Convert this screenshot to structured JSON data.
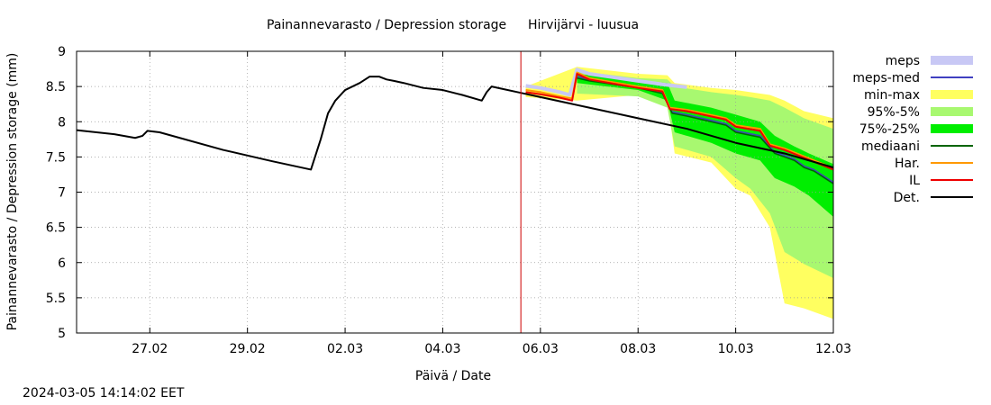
{
  "chart_data": {
    "type": "area",
    "title": "Painannevarasto / Depression storage",
    "station": "Hirvijärvi - luusua",
    "xlabel": "Päivä / Date",
    "ylabel": "Painannevarasto / Depression storage (mm)",
    "x_unit": "days since 2024-02-26 00:00",
    "xlim": [
      -0.5,
      15
    ],
    "ylim": [
      5,
      9
    ],
    "yticks": [
      5,
      5.5,
      6,
      6.5,
      7,
      7.5,
      8,
      8.5,
      9
    ],
    "yticklabels": [
      "5",
      "5.5",
      "6",
      "6.5",
      "7",
      "7.5",
      "8",
      "8.5",
      "9"
    ],
    "xticks": [
      1,
      3,
      5,
      7,
      9,
      11,
      13,
      15
    ],
    "xticklabels": [
      "27.02",
      "29.02",
      "02.03",
      "04.03",
      "06.03",
      "08.03",
      "10.03",
      "12.03"
    ],
    "forecast_start": 8.6,
    "grid": true,
    "legend": [
      "meps",
      "meps-med",
      "min-max",
      "95%-5%",
      "75%-25%",
      "mediaani",
      "Har.",
      "IL",
      "Det."
    ],
    "colors": {
      "meps": "#c8c8f5",
      "meps_med": "#4040c0",
      "minmax": "#ffff60",
      "p95_5": "#a8f870",
      "p75_25": "#00ee00",
      "mediaani": "#006400",
      "har": "#ff9900",
      "il": "#ee0000",
      "det": "#000000",
      "vline": "#cc0000"
    },
    "series": {
      "det": {
        "x": [
          -0.5,
          0.3,
          0.7,
          0.85,
          0.95,
          1.2,
          2.5,
          3.5,
          4.3,
          4.5,
          4.65,
          4.8,
          5.0,
          5.3,
          5.5,
          5.7,
          5.85,
          6.0,
          6.2,
          6.6,
          7.0,
          7.4,
          7.8,
          7.9,
          8.0,
          8.2,
          8.6,
          9.0,
          10.0,
          11.0,
          12.0,
          13.0,
          14.0,
          15.0
        ],
        "y": [
          7.88,
          7.82,
          7.77,
          7.8,
          7.87,
          7.85,
          7.6,
          7.44,
          7.32,
          7.75,
          8.12,
          8.3,
          8.45,
          8.55,
          8.64,
          8.64,
          8.6,
          8.58,
          8.55,
          8.48,
          8.45,
          8.38,
          8.3,
          8.42,
          8.5,
          8.47,
          8.41,
          8.35,
          8.2,
          8.05,
          7.9,
          7.7,
          7.55,
          7.35
        ]
      },
      "meps": {
        "x": [
          8.7,
          9.0,
          9.4,
          9.6,
          9.75,
          10.0,
          10.5,
          11.0,
          11.5,
          12.0
        ],
        "y": [
          8.51,
          8.48,
          8.42,
          8.38,
          8.74,
          8.68,
          8.63,
          8.58,
          8.53,
          8.49
        ]
      },
      "har": {
        "x": [
          8.7,
          9.0,
          9.4,
          9.65,
          9.75,
          10.0,
          10.5,
          11.0,
          11.5,
          11.65,
          12.0,
          12.8,
          13.0,
          13.5,
          13.7,
          14.0,
          15.0
        ],
        "y": [
          8.45,
          8.42,
          8.36,
          8.33,
          8.7,
          8.62,
          8.56,
          8.5,
          8.45,
          8.2,
          8.17,
          8.05,
          7.95,
          7.9,
          7.68,
          7.62,
          7.34
        ]
      },
      "il": {
        "x": [
          8.7,
          9.0,
          9.4,
          9.65,
          9.75,
          10.0,
          10.5,
          11.0,
          11.5,
          11.65,
          12.0,
          12.8,
          13.0,
          13.5,
          13.7,
          14.0,
          15.0
        ],
        "y": [
          8.42,
          8.39,
          8.34,
          8.3,
          8.68,
          8.6,
          8.54,
          8.48,
          8.43,
          8.18,
          8.15,
          8.03,
          7.93,
          7.87,
          7.66,
          7.6,
          7.32
        ]
      },
      "mediaani": {
        "x": [
          9.75,
          10.0,
          11.0,
          11.5,
          11.7,
          12.0,
          12.8,
          13.0,
          13.5,
          13.8,
          14.2,
          14.4,
          14.6,
          15.0
        ],
        "y": [
          8.62,
          8.58,
          8.48,
          8.4,
          8.12,
          8.08,
          7.95,
          7.85,
          7.78,
          7.55,
          7.45,
          7.35,
          7.3,
          7.12
        ]
      },
      "meps_med": {
        "x": [
          9.75,
          10.0,
          11.0,
          11.5,
          11.7,
          12.0,
          12.8,
          13.0,
          13.5,
          13.8,
          14.2,
          14.4,
          14.6,
          15.0
        ],
        "y": [
          8.64,
          8.6,
          8.5,
          8.42,
          8.14,
          8.1,
          7.97,
          7.87,
          7.8,
          7.57,
          7.47,
          7.37,
          7.32,
          7.14
        ]
      }
    },
    "bands": {
      "minmax": {
        "x": [
          8.7,
          9.75,
          11.0,
          11.6,
          11.75,
          12.5,
          13.0,
          13.3,
          13.7,
          14.0,
          14.4,
          15.0
        ],
        "upper": [
          8.5,
          8.78,
          8.68,
          8.66,
          8.55,
          8.48,
          8.45,
          8.42,
          8.38,
          8.3,
          8.15,
          8.05
        ],
        "lower": [
          8.35,
          8.3,
          8.38,
          8.3,
          7.55,
          7.42,
          7.05,
          6.95,
          6.5,
          5.42,
          5.35,
          5.2
        ]
      },
      "p95_5": {
        "x": [
          9.75,
          11.0,
          11.6,
          11.75,
          12.5,
          13.0,
          13.3,
          13.7,
          14.0,
          14.4,
          15.0
        ],
        "upper": [
          8.72,
          8.62,
          8.6,
          8.5,
          8.42,
          8.38,
          8.35,
          8.3,
          8.2,
          8.05,
          7.9
        ],
        "lower": [
          8.4,
          8.36,
          8.2,
          7.65,
          7.5,
          7.2,
          7.05,
          6.7,
          6.15,
          5.98,
          5.78
        ]
      },
      "p75_25": {
        "x": [
          9.75,
          11.0,
          11.6,
          11.75,
          12.5,
          13.0,
          13.5,
          13.8,
          14.2,
          14.5,
          15.0
        ],
        "upper": [
          8.68,
          8.58,
          8.55,
          8.3,
          8.2,
          8.1,
          8.0,
          7.8,
          7.65,
          7.55,
          7.4
        ],
        "lower": [
          8.55,
          8.45,
          8.3,
          7.85,
          7.7,
          7.55,
          7.45,
          7.2,
          7.08,
          6.95,
          6.65
        ]
      }
    }
  },
  "footer": {
    "timestamp": "2024-03-05 14:14:02 EET"
  }
}
